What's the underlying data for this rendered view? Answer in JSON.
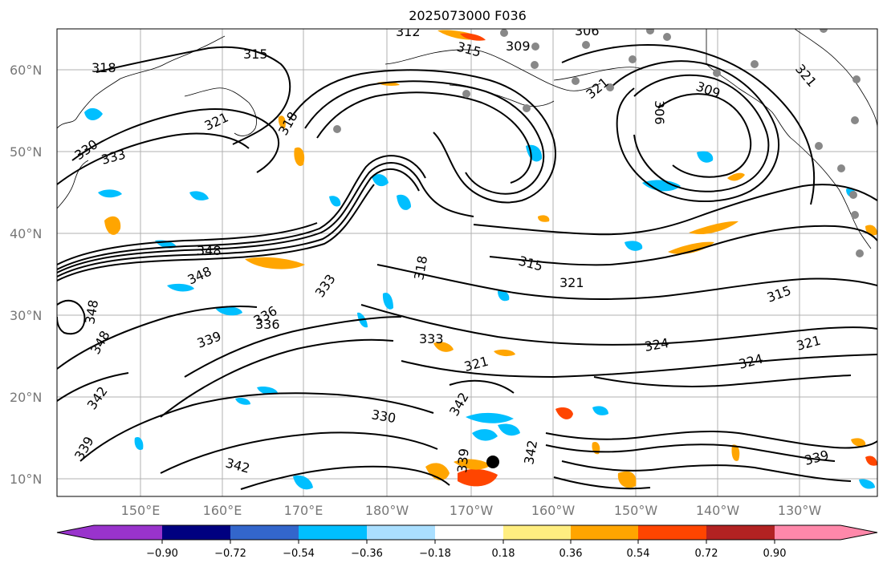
{
  "title": "2025073000 F036",
  "lat_labels": [
    "60°N",
    "50°N",
    "40°N",
    "30°N",
    "20°N",
    "10°N"
  ],
  "lon_labels": [
    "150°E",
    "160°E",
    "170°E",
    "180°W",
    "170°W",
    "160°W",
    "150°W",
    "140°W",
    "130°W"
  ],
  "contour_labels": [
    "312",
    "315",
    "309",
    "306",
    "318",
    "315",
    "321",
    "321",
    "309",
    "306",
    "321",
    "330",
    "333",
    "318",
    "315",
    "348",
    "348",
    "336",
    "333",
    "318",
    "321",
    "315",
    "348",
    "348",
    "336",
    "339",
    "333",
    "324",
    "324",
    "321",
    "342",
    "321",
    "330",
    "342",
    "339",
    "339",
    "342",
    "339",
    "342"
  ],
  "colorbar": {
    "ticks": [
      "−0.90",
      "−0.72",
      "−0.54",
      "−0.36",
      "−0.18",
      "0.18",
      "0.36",
      "0.54",
      "0.72",
      "0.90"
    ],
    "colors": [
      "#9933cc",
      "#000080",
      "#3366cc",
      "#00bfff",
      "#aadfff",
      "#ffffff",
      "#ffee80",
      "#ffa500",
      "#ff4500",
      "#b22222",
      "#ff88aa"
    ]
  },
  "colors": {
    "map_background": "#ffffff",
    "contour": "#000000",
    "gridline": "#b0b0b0",
    "marker": "#888888"
  }
}
